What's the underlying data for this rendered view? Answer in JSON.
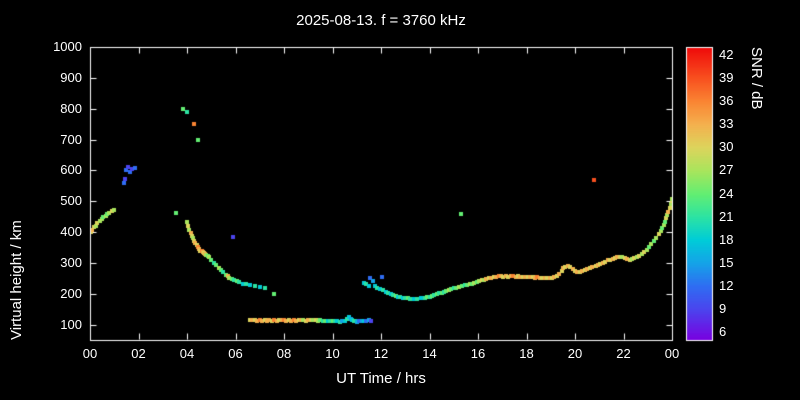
{
  "colors": {
    "background": "#000000",
    "text": "#ffffff",
    "frame": "#ffffff"
  },
  "chart_data": {
    "type": "scatter",
    "title": "2025-08-13. f = 3760 kHz",
    "xlabel": "UT Time / hrs",
    "ylabel": "Virtual height / km",
    "colorbar_label": "SNR / dB",
    "xlim": [
      0,
      24
    ],
    "ylim": [
      50,
      1000
    ],
    "grid": false,
    "x_ticks": [
      {
        "v": 0,
        "label": "00"
      },
      {
        "v": 2,
        "label": "02"
      },
      {
        "v": 4,
        "label": "04"
      },
      {
        "v": 6,
        "label": "06"
      },
      {
        "v": 8,
        "label": "08"
      },
      {
        "v": 10,
        "label": "10"
      },
      {
        "v": 12,
        "label": "12"
      },
      {
        "v": 14,
        "label": "14"
      },
      {
        "v": 16,
        "label": "16"
      },
      {
        "v": 18,
        "label": "18"
      },
      {
        "v": 20,
        "label": "20"
      },
      {
        "v": 22,
        "label": "22"
      },
      {
        "v": 24,
        "label": "00"
      }
    ],
    "y_ticks": [
      100,
      200,
      300,
      400,
      500,
      600,
      700,
      800,
      900,
      1000
    ],
    "colorbar": {
      "range": [
        5,
        43
      ],
      "ticks": [
        6,
        9,
        12,
        15,
        18,
        21,
        24,
        27,
        30,
        33,
        36,
        39,
        42
      ],
      "stops": [
        [
          5,
          "#7a00e0"
        ],
        [
          9,
          "#4b44ee"
        ],
        [
          12,
          "#2f6df2"
        ],
        [
          15,
          "#15a3e8"
        ],
        [
          18,
          "#00ccd8"
        ],
        [
          21,
          "#2ce3a3"
        ],
        [
          24,
          "#63ee72"
        ],
        [
          27,
          "#a9e55c"
        ],
        [
          30,
          "#ddd45c"
        ],
        [
          33,
          "#f4b14e"
        ],
        [
          36,
          "#fa8433"
        ],
        [
          39,
          "#f8501f"
        ],
        [
          43,
          "#ef0a0a"
        ]
      ]
    },
    "points": [
      [
        0.05,
        400,
        30
      ],
      [
        0.1,
        408,
        33
      ],
      [
        0.15,
        415,
        30
      ],
      [
        0.25,
        420,
        27
      ],
      [
        0.3,
        428,
        30
      ],
      [
        0.4,
        435,
        27
      ],
      [
        0.5,
        442,
        27
      ],
      [
        0.55,
        448,
        24
      ],
      [
        0.65,
        452,
        27
      ],
      [
        0.7,
        458,
        24
      ],
      [
        0.8,
        462,
        27
      ],
      [
        0.9,
        468,
        30
      ],
      [
        1.0,
        472,
        27
      ],
      [
        1.4,
        558,
        12
      ],
      [
        1.45,
        572,
        9
      ],
      [
        1.5,
        600,
        12
      ],
      [
        1.55,
        610,
        9
      ],
      [
        1.65,
        596,
        12
      ],
      [
        1.75,
        604,
        9
      ],
      [
        1.85,
        608,
        12
      ],
      [
        3.55,
        462,
        24
      ],
      [
        3.85,
        800,
        24
      ],
      [
        4.0,
        788,
        21
      ],
      [
        4.3,
        750,
        36
      ],
      [
        4.45,
        700,
        24
      ],
      [
        4.0,
        432,
        27
      ],
      [
        4.05,
        420,
        30
      ],
      [
        4.1,
        408,
        27
      ],
      [
        4.15,
        398,
        33
      ],
      [
        4.2,
        388,
        30
      ],
      [
        4.25,
        380,
        27
      ],
      [
        4.3,
        372,
        30
      ],
      [
        4.35,
        364,
        33
      ],
      [
        4.4,
        357,
        30
      ],
      [
        4.45,
        350,
        36
      ],
      [
        4.5,
        344,
        33
      ],
      [
        4.55,
        340,
        30
      ],
      [
        4.6,
        337,
        36
      ],
      [
        4.65,
        334,
        33
      ],
      [
        4.7,
        332,
        30
      ],
      [
        4.75,
        330,
        33
      ],
      [
        4.8,
        326,
        27
      ],
      [
        4.85,
        322,
        24
      ],
      [
        4.9,
        318,
        27
      ],
      [
        5.0,
        308,
        24
      ],
      [
        5.1,
        300,
        21
      ],
      [
        5.2,
        292,
        24
      ],
      [
        5.3,
        284,
        27
      ],
      [
        5.4,
        276,
        24
      ],
      [
        5.5,
        269,
        21
      ],
      [
        5.6,
        262,
        24
      ],
      [
        5.7,
        256,
        33
      ],
      [
        5.75,
        252,
        27
      ],
      [
        5.85,
        248,
        24
      ],
      [
        5.9,
        385,
        9
      ],
      [
        5.95,
        244,
        21
      ],
      [
        6.05,
        240,
        24
      ],
      [
        6.15,
        237,
        21
      ],
      [
        6.3,
        233,
        18
      ],
      [
        6.45,
        230,
        21
      ],
      [
        6.6,
        227,
        18
      ],
      [
        6.8,
        224,
        21
      ],
      [
        7.0,
        221,
        18
      ],
      [
        7.2,
        219,
        21
      ],
      [
        7.6,
        200,
        24
      ],
      [
        6.6,
        116,
        30
      ],
      [
        6.7,
        114,
        33
      ],
      [
        6.8,
        115,
        30
      ],
      [
        6.9,
        113,
        33
      ],
      [
        7.0,
        114,
        36
      ],
      [
        7.1,
        113,
        33
      ],
      [
        7.2,
        114,
        30
      ],
      [
        7.3,
        113,
        33
      ],
      [
        7.4,
        114,
        33
      ],
      [
        7.5,
        113,
        30
      ],
      [
        7.6,
        114,
        36
      ],
      [
        7.7,
        113,
        33
      ],
      [
        7.8,
        114,
        30
      ],
      [
        7.9,
        115,
        33
      ],
      [
        8.0,
        114,
        36
      ],
      [
        8.1,
        113,
        33
      ],
      [
        8.2,
        114,
        30
      ],
      [
        8.3,
        113,
        33
      ],
      [
        8.4,
        114,
        36
      ],
      [
        8.5,
        113,
        33
      ],
      [
        8.6,
        114,
        30
      ],
      [
        8.7,
        115,
        33
      ],
      [
        8.8,
        114,
        27
      ],
      [
        8.9,
        113,
        30
      ],
      [
        9.0,
        114,
        33
      ],
      [
        9.1,
        116,
        30
      ],
      [
        9.2,
        114,
        27
      ],
      [
        9.3,
        115,
        30
      ],
      [
        9.4,
        113,
        27
      ],
      [
        9.5,
        114,
        24
      ],
      [
        9.6,
        113,
        21
      ],
      [
        9.7,
        111,
        24
      ],
      [
        9.8,
        112,
        18
      ],
      [
        9.9,
        111,
        21
      ],
      [
        10.0,
        110,
        24
      ],
      [
        10.1,
        112,
        21
      ],
      [
        10.2,
        110,
        18
      ],
      [
        10.3,
        109,
        21
      ],
      [
        10.4,
        110,
        15
      ],
      [
        10.5,
        113,
        18
      ],
      [
        10.6,
        118,
        21
      ],
      [
        10.7,
        123,
        18
      ],
      [
        10.75,
        119,
        15
      ],
      [
        10.8,
        115,
        18
      ],
      [
        10.9,
        111,
        21
      ],
      [
        11.0,
        109,
        15
      ],
      [
        11.05,
        112,
        18
      ],
      [
        11.1,
        110,
        12
      ],
      [
        11.2,
        112,
        15
      ],
      [
        11.3,
        110,
        18
      ],
      [
        11.4,
        112,
        12
      ],
      [
        11.5,
        116,
        15
      ],
      [
        11.6,
        112,
        9
      ],
      [
        11.3,
        236,
        18
      ],
      [
        11.4,
        230,
        21
      ],
      [
        11.5,
        226,
        18
      ],
      [
        11.55,
        252,
        12
      ],
      [
        11.65,
        242,
        15
      ],
      [
        11.75,
        226,
        18
      ],
      [
        11.85,
        220,
        21
      ],
      [
        11.95,
        216,
        18
      ],
      [
        12.05,
        254,
        12
      ],
      [
        12.1,
        212,
        21
      ],
      [
        12.2,
        206,
        18
      ],
      [
        12.3,
        201,
        21
      ],
      [
        12.4,
        198,
        18
      ],
      [
        12.5,
        195,
        21
      ],
      [
        12.6,
        192,
        24
      ],
      [
        12.7,
        190,
        18
      ],
      [
        12.8,
        188,
        21
      ],
      [
        12.9,
        187,
        18
      ],
      [
        13.0,
        186,
        21
      ],
      [
        13.1,
        185,
        24
      ],
      [
        13.2,
        184,
        21
      ],
      [
        13.35,
        183,
        18
      ],
      [
        13.5,
        183,
        21
      ],
      [
        13.65,
        185,
        18
      ],
      [
        13.8,
        187,
        21
      ],
      [
        13.9,
        189,
        24
      ],
      [
        14.0,
        191,
        21
      ],
      [
        14.1,
        194,
        24
      ],
      [
        14.2,
        196,
        21
      ],
      [
        14.3,
        199,
        24
      ],
      [
        14.4,
        202,
        21
      ],
      [
        14.5,
        204,
        24
      ],
      [
        14.6,
        207,
        21
      ],
      [
        14.7,
        210,
        24
      ],
      [
        14.8,
        212,
        27
      ],
      [
        14.9,
        214,
        24
      ],
      [
        15.0,
        217,
        21
      ],
      [
        15.1,
        219,
        24
      ],
      [
        15.2,
        222,
        27
      ],
      [
        15.3,
        460,
        24
      ],
      [
        15.35,
        224,
        24
      ],
      [
        15.45,
        227,
        21
      ],
      [
        15.55,
        229,
        24
      ],
      [
        15.65,
        232,
        27
      ],
      [
        15.75,
        233,
        24
      ],
      [
        15.85,
        235,
        27
      ],
      [
        15.95,
        237,
        24
      ],
      [
        16.05,
        240,
        27
      ],
      [
        16.15,
        243,
        30
      ],
      [
        16.25,
        246,
        27
      ],
      [
        16.35,
        248,
        33
      ],
      [
        16.45,
        250,
        30
      ],
      [
        16.55,
        252,
        33
      ],
      [
        16.65,
        253,
        30
      ],
      [
        16.75,
        255,
        33
      ],
      [
        16.85,
        256,
        36
      ],
      [
        16.95,
        256,
        33
      ],
      [
        17.05,
        255,
        30
      ],
      [
        17.15,
        256,
        33
      ],
      [
        17.25,
        255,
        30
      ],
      [
        17.35,
        257,
        33
      ],
      [
        17.45,
        256,
        36
      ],
      [
        17.55,
        255,
        33
      ],
      [
        17.65,
        256,
        30
      ],
      [
        17.75,
        255,
        33
      ],
      [
        17.85,
        254,
        30
      ],
      [
        17.95,
        255,
        33
      ],
      [
        18.05,
        255,
        30
      ],
      [
        18.15,
        254,
        33
      ],
      [
        18.25,
        253,
        30
      ],
      [
        18.35,
        252,
        33
      ],
      [
        18.45,
        253,
        36
      ],
      [
        18.55,
        252,
        33
      ],
      [
        18.65,
        251,
        30
      ],
      [
        18.75,
        250,
        33
      ],
      [
        18.85,
        251,
        30
      ],
      [
        18.95,
        250,
        33
      ],
      [
        19.05,
        252,
        30
      ],
      [
        19.15,
        253,
        33
      ],
      [
        19.25,
        256,
        30
      ],
      [
        19.35,
        264,
        33
      ],
      [
        19.45,
        274,
        30
      ],
      [
        19.5,
        282,
        33
      ],
      [
        19.6,
        288,
        30
      ],
      [
        19.7,
        291,
        33
      ],
      [
        19.8,
        286,
        30
      ],
      [
        19.9,
        279,
        33
      ],
      [
        20.0,
        273,
        30
      ],
      [
        20.1,
        271,
        33
      ],
      [
        20.2,
        272,
        30
      ],
      [
        20.3,
        275,
        33
      ],
      [
        20.4,
        277,
        30
      ],
      [
        20.5,
        280,
        33
      ],
      [
        20.6,
        283,
        30
      ],
      [
        20.7,
        286,
        33
      ],
      [
        20.8,
        570,
        39
      ],
      [
        20.85,
        289,
        30
      ],
      [
        20.95,
        292,
        33
      ],
      [
        21.05,
        296,
        30
      ],
      [
        21.15,
        300,
        33
      ],
      [
        21.25,
        304,
        30
      ],
      [
        21.35,
        308,
        33
      ],
      [
        21.45,
        310,
        30
      ],
      [
        21.55,
        312,
        33
      ],
      [
        21.65,
        315,
        30
      ],
      [
        21.75,
        318,
        33
      ],
      [
        21.85,
        320,
        30
      ],
      [
        21.95,
        318,
        27
      ],
      [
        22.05,
        315,
        30
      ],
      [
        22.15,
        312,
        33
      ],
      [
        22.25,
        310,
        30
      ],
      [
        22.35,
        312,
        27
      ],
      [
        22.45,
        315,
        30
      ],
      [
        22.55,
        318,
        27
      ],
      [
        22.65,
        322,
        30
      ],
      [
        22.75,
        328,
        27
      ],
      [
        22.85,
        334,
        30
      ],
      [
        22.95,
        342,
        27
      ],
      [
        23.05,
        352,
        24
      ],
      [
        23.15,
        362,
        27
      ],
      [
        23.25,
        372,
        24
      ],
      [
        23.35,
        382,
        27
      ],
      [
        23.45,
        393,
        30
      ],
      [
        23.55,
        404,
        27
      ],
      [
        23.6,
        412,
        24
      ],
      [
        23.65,
        422,
        27
      ],
      [
        23.7,
        432,
        24
      ],
      [
        23.75,
        444,
        30
      ],
      [
        23.8,
        455,
        27
      ],
      [
        23.85,
        466,
        33
      ],
      [
        23.9,
        477,
        30
      ],
      [
        23.95,
        490,
        27
      ],
      [
        23.98,
        500,
        30
      ],
      [
        24.0,
        508,
        27
      ]
    ]
  }
}
